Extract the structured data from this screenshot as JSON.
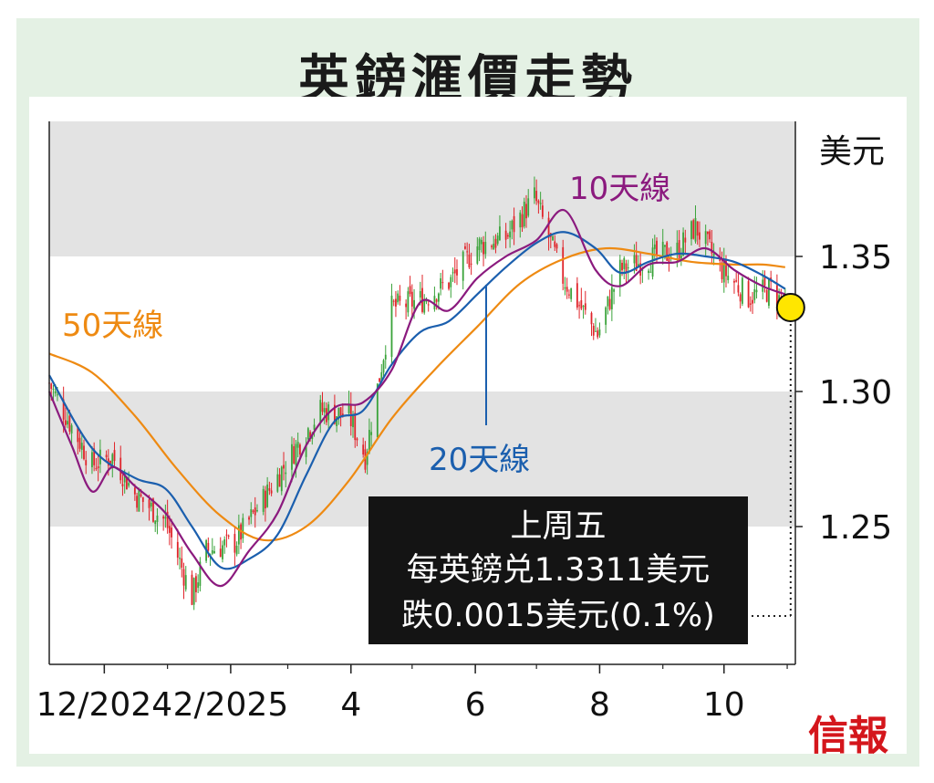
{
  "title": "英鎊滙價走勢",
  "logo_text": "信報",
  "colors": {
    "up": "#3aa33a",
    "down": "#e0242a",
    "ma10": "#8b1a7e",
    "ma20": "#1b5fae",
    "ma50": "#ee8a12",
    "band": "#e3e3e3",
    "highlight": "#ffe600"
  },
  "chart_data": {
    "type": "line",
    "title": "英鎊滙價走勢",
    "ylabel": "美元",
    "ylim": [
      1.205,
      1.352
    ],
    "yticks": [
      "1.25",
      "1.30",
      "1.35"
    ],
    "xticks": [
      {
        "date": "2024-12-01",
        "label": "12/2024"
      },
      {
        "date": "2025-02-01",
        "label": "2/2025"
      },
      {
        "date": "2025-04-01",
        "label": "4"
      },
      {
        "date": "2025-06-01",
        "label": "6"
      },
      {
        "date": "2025-08-01",
        "label": "8"
      },
      {
        "date": "2025-10-01",
        "label": "10"
      }
    ],
    "x_range": [
      "2024-11-04",
      "2025-11-05"
    ],
    "price": {
      "x": [
        "2024-11-04",
        "2024-11-15",
        "2024-11-25",
        "2024-12-05",
        "2024-12-16",
        "2024-12-31",
        "2025-01-13",
        "2025-01-20",
        "2025-02-03",
        "2025-02-17",
        "2025-03-03",
        "2025-03-17",
        "2025-03-31",
        "2025-04-08",
        "2025-04-21",
        "2025-05-06",
        "2025-05-20",
        "2025-06-02",
        "2025-06-16",
        "2025-06-30",
        "2025-07-14",
        "2025-07-31",
        "2025-08-11",
        "2025-08-25",
        "2025-09-08",
        "2025-09-17",
        "2025-09-29",
        "2025-10-13",
        "2025-10-24",
        "2025-10-31"
      ],
      "y": [
        1.303,
        1.287,
        1.273,
        1.276,
        1.262,
        1.252,
        1.224,
        1.241,
        1.244,
        1.26,
        1.277,
        1.293,
        1.291,
        1.276,
        1.331,
        1.334,
        1.341,
        1.354,
        1.357,
        1.372,
        1.342,
        1.321,
        1.345,
        1.349,
        1.352,
        1.361,
        1.346,
        1.335,
        1.338,
        1.3311
      ]
    },
    "series": [
      {
        "name": "10天線",
        "x": [
          "2024-11-04",
          "2024-11-15",
          "2024-11-25",
          "2024-12-05",
          "2024-12-16",
          "2024-12-31",
          "2025-01-13",
          "2025-01-27",
          "2025-02-10",
          "2025-02-24",
          "2025-03-10",
          "2025-03-24",
          "2025-04-07",
          "2025-04-21",
          "2025-05-05",
          "2025-05-19",
          "2025-06-02",
          "2025-06-16",
          "2025-07-01",
          "2025-07-15",
          "2025-07-30",
          "2025-08-11",
          "2025-08-25",
          "2025-09-08",
          "2025-09-22",
          "2025-10-06",
          "2025-10-20",
          "2025-10-31"
        ],
        "y": [
          1.3,
          1.28,
          1.263,
          1.272,
          1.265,
          1.255,
          1.24,
          1.228,
          1.241,
          1.255,
          1.28,
          1.294,
          1.296,
          1.308,
          1.333,
          1.33,
          1.342,
          1.35,
          1.356,
          1.367,
          1.345,
          1.339,
          1.347,
          1.348,
          1.353,
          1.345,
          1.339,
          1.336
        ]
      },
      {
        "name": "20天線",
        "x": [
          "2024-11-04",
          "2024-11-25",
          "2024-12-16",
          "2024-12-31",
          "2025-01-13",
          "2025-01-27",
          "2025-02-10",
          "2025-02-24",
          "2025-03-10",
          "2025-03-24",
          "2025-04-07",
          "2025-04-21",
          "2025-05-05",
          "2025-05-19",
          "2025-06-02",
          "2025-06-16",
          "2025-07-01",
          "2025-07-15",
          "2025-07-30",
          "2025-08-11",
          "2025-08-25",
          "2025-09-08",
          "2025-09-22",
          "2025-10-06",
          "2025-10-20",
          "2025-10-31"
        ],
        "y": [
          1.306,
          1.279,
          1.268,
          1.264,
          1.25,
          1.235,
          1.238,
          1.247,
          1.269,
          1.289,
          1.293,
          1.31,
          1.322,
          1.326,
          1.336,
          1.346,
          1.355,
          1.359,
          1.353,
          1.344,
          1.348,
          1.351,
          1.35,
          1.348,
          1.343,
          1.338
        ]
      },
      {
        "name": "50天線",
        "x": [
          "2024-11-04",
          "2024-11-25",
          "2024-12-16",
          "2025-01-06",
          "2025-01-27",
          "2025-02-17",
          "2025-03-10",
          "2025-03-31",
          "2025-04-21",
          "2025-05-12",
          "2025-06-02",
          "2025-06-23",
          "2025-07-14",
          "2025-08-04",
          "2025-08-25",
          "2025-09-15",
          "2025-10-06",
          "2025-10-20",
          "2025-10-31"
        ],
        "y": [
          1.314,
          1.307,
          1.291,
          1.271,
          1.254,
          1.245,
          1.25,
          1.267,
          1.29,
          1.308,
          1.324,
          1.34,
          1.349,
          1.353,
          1.351,
          1.348,
          1.347,
          1.347,
          1.346
        ]
      }
    ],
    "annotation": {
      "lines": [
        "上周五",
        "每英鎊兑1.3311美元",
        "跌0.0015美元(0.1%)"
      ],
      "date": "2025-10-31",
      "value": 1.3311
    }
  }
}
